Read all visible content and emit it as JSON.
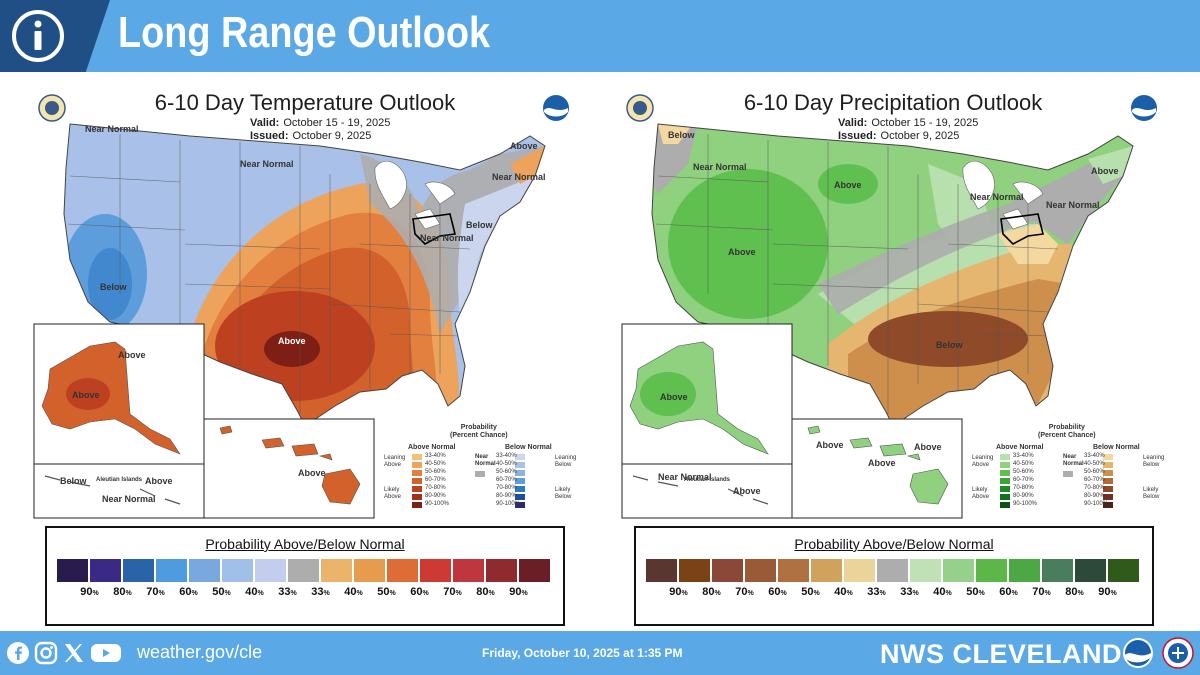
{
  "header": {
    "title": "Long Range Outlook",
    "icon": "info-icon"
  },
  "temperature": {
    "title": "6-10 Day Temperature Outlook",
    "valid_label": "Valid:",
    "valid_value": "October 15 - 19, 2025",
    "issued_label": "Issued:",
    "issued_value": "October 9, 2025",
    "map_labels": {
      "nw_near_normal": "Near\nNormal",
      "mid_near_normal": "Near\nNormal",
      "ne_above": "Above",
      "ne_near_normal": "Near\nNormal",
      "below_east": "Below",
      "oh_near_normal": "Near\nNormal",
      "below_west": "Below",
      "above_center": "Above",
      "ak_above_1": "Above",
      "ak_above_2": "Above",
      "ak_below": "Below",
      "aleutian": "Aleutian Islands",
      "ak_above_3": "Above",
      "ak_near_normal": "Near\nNormal",
      "hi_above": "Above"
    },
    "legend": {
      "heading": "Probability\n(Percent Chance)",
      "above_head": "Above Normal",
      "below_head": "Below Normal",
      "near_normal": "Near\nNormal",
      "leaning_above": "Leaning\nAbove",
      "likely_above": "Likely\nAbove",
      "leaning_below": "Leaning\nBelow",
      "likely_below": "Likely\nBelow",
      "ranges": [
        "33-40%",
        "40-50%",
        "50-60%",
        "60-70%",
        "70-80%",
        "80-90%",
        "90-100%"
      ],
      "above_colors": [
        "#f1c179",
        "#eda35c",
        "#e3803f",
        "#d2612c",
        "#bd4120",
        "#a1311b",
        "#7d1f14"
      ],
      "below_colors": [
        "#cbd6ee",
        "#a9c1e8",
        "#8cb0e2",
        "#5d9ddc",
        "#2f7ac4",
        "#1f4f9a",
        "#2c2a75"
      ]
    }
  },
  "precipitation": {
    "title": "6-10 Day Precipitation Outlook",
    "valid_label": "Valid:",
    "valid_value": "October 15 - 19, 2025",
    "issued_label": "Issued:",
    "issued_value": "October 9, 2025",
    "map_labels": {
      "nw_below": "Below",
      "nw_near_normal": "Near\nNormal",
      "above_north": "Above",
      "ne_above": "Above",
      "near_normal_great_lakes": "Near\nNormal",
      "ne_near_normal": "Near\nNormal",
      "above_west": "Above",
      "below_south": "Below",
      "ak_above": "Above",
      "aleutian": "Aleutian Islands",
      "ak_near_normal": "Near\nNormal",
      "ak_above_2": "Above",
      "hi_above_1": "Above",
      "hi_above_2": "Above",
      "hi_above_3": "Above"
    },
    "legend": {
      "heading": "Probability\n(Percent Chance)",
      "above_head": "Above Normal",
      "below_head": "Below Normal",
      "near_normal": "Near\nNormal",
      "leaning_above": "Leaning\nAbove",
      "likely_above": "Likely\nAbove",
      "leaning_below": "Leaning\nBelow",
      "likely_below": "Likely\nBelow",
      "ranges": [
        "33-40%",
        "40-50%",
        "50-60%",
        "60-70%",
        "70-80%",
        "80-90%",
        "90-100%"
      ],
      "above_colors": [
        "#b7e0ae",
        "#8fd17f",
        "#5fbf4f",
        "#37a637",
        "#1f8a26",
        "#12711c",
        "#0b5314"
      ],
      "below_colors": [
        "#f3d9a0",
        "#e4b66f",
        "#cf8f4c",
        "#b46a37",
        "#8f4a29",
        "#6d3320",
        "#4b2417"
      ]
    }
  },
  "temp_scale": {
    "title": "Probability Above/Below Normal",
    "colors": [
      "#2a1b4f",
      "#3a2a86",
      "#2964a8",
      "#4f9be0",
      "#78a8df",
      "#a1c0e9",
      "#c3cdee",
      "#adadad",
      "#ebb46a",
      "#e69b4f",
      "#dd6c35",
      "#cd3a34",
      "#c0363e",
      "#8f2a2e",
      "#6a1f26"
    ],
    "labels": [
      "90",
      "80",
      "70",
      "60",
      "50",
      "40",
      "33",
      "33",
      "40",
      "50",
      "60",
      "70",
      "80",
      "90"
    ],
    "unit": "%"
  },
  "precip_scale": {
    "title": "Probability Above/Below Normal",
    "colors": [
      "#5a3630",
      "#7a4215",
      "#8b4738",
      "#9b5a37",
      "#b07040",
      "#d0a25b",
      "#ebd49a",
      "#adadad",
      "#bfe1b3",
      "#95d18a",
      "#5cb748",
      "#4ca844",
      "#4a7d5c",
      "#2d4a38",
      "#2f5a1a"
    ],
    "labels": [
      "90",
      "80",
      "70",
      "60",
      "50",
      "40",
      "33",
      "33",
      "40",
      "50",
      "60",
      "70",
      "80",
      "90"
    ],
    "unit": "%"
  },
  "footer": {
    "social": [
      "facebook-icon",
      "instagram-icon",
      "x-icon",
      "youtube-icon"
    ],
    "website": "weather.gov/cle",
    "date": "Friday, October 10, 2025 at 1:35 PM",
    "office": "NWS CLEVELAND"
  }
}
